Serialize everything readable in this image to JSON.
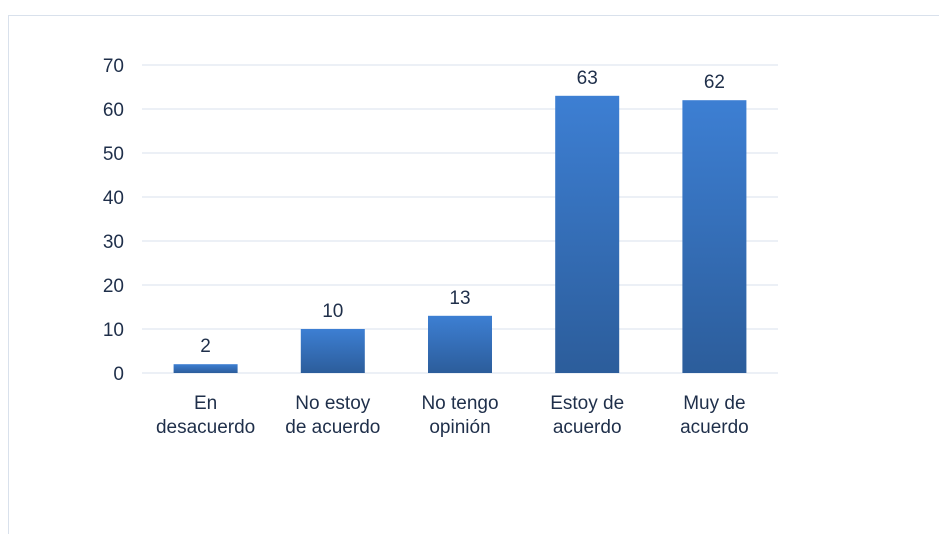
{
  "chart_data": {
    "type": "bar",
    "categories": [
      [
        "En",
        "desacuerdo"
      ],
      [
        "No estoy",
        "de acuerdo"
      ],
      [
        "No tengo",
        "opinión"
      ],
      [
        "Estoy de",
        "acuerdo"
      ],
      [
        "Muy de",
        "acuerdo"
      ]
    ],
    "values": [
      2,
      10,
      13,
      63,
      62
    ],
    "data_labels": [
      "2",
      "10",
      "13",
      "63",
      "62"
    ],
    "ylim": [
      0,
      70
    ],
    "yticks": [
      0,
      10,
      20,
      30,
      40,
      50,
      60,
      70
    ],
    "grid": true,
    "legend": "none",
    "colors": {
      "bar_top": "#3d7fd3",
      "bar_bottom": "#2c5d9b",
      "grid": "#d9e1ec",
      "text": "#1f2f4a"
    }
  }
}
